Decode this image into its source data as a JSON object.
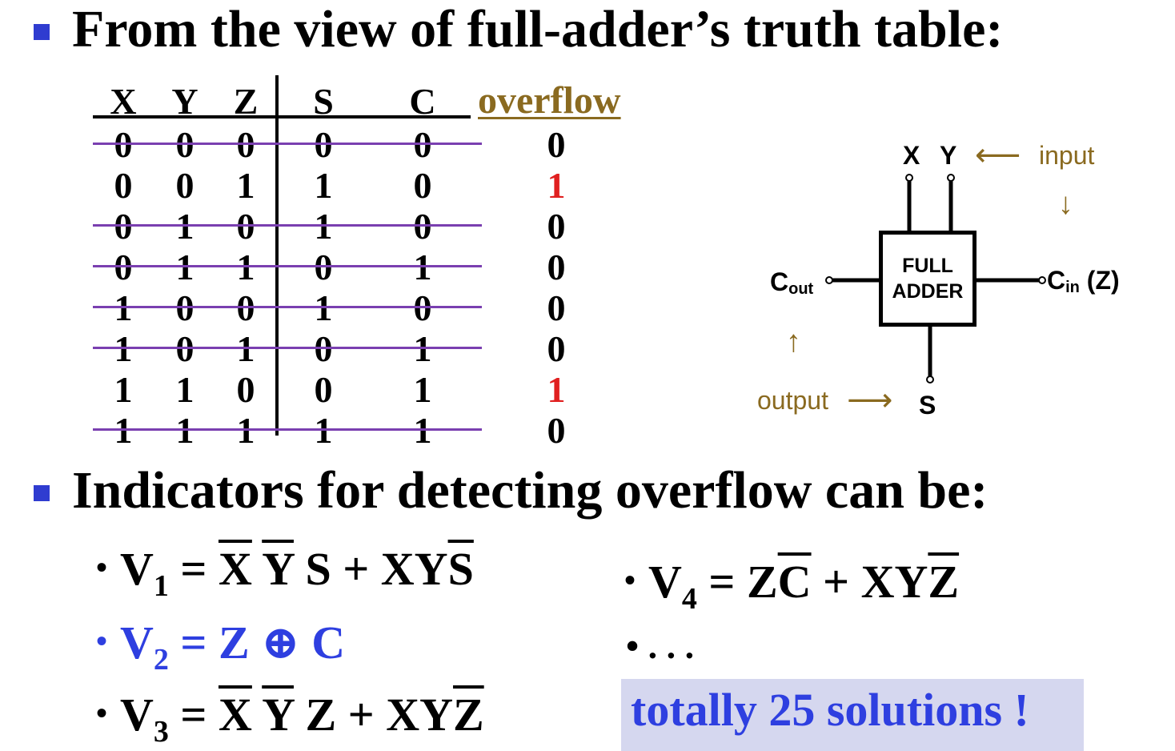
{
  "headings": {
    "first": "From the view of full-adder’s truth table:",
    "second": "Indicators for detecting overflow can be:"
  },
  "truth_table": {
    "headers": [
      "X",
      "Y",
      "Z",
      "S",
      "C"
    ],
    "overflow_header": "overflow",
    "rows": [
      {
        "values": [
          "0",
          "0",
          "0",
          "0",
          "0"
        ],
        "overflow": "0",
        "struck": true
      },
      {
        "values": [
          "0",
          "0",
          "1",
          "1",
          "0"
        ],
        "overflow": "1",
        "struck": false
      },
      {
        "values": [
          "0",
          "1",
          "0",
          "1",
          "0"
        ],
        "overflow": "0",
        "struck": true
      },
      {
        "values": [
          "0",
          "1",
          "1",
          "0",
          "1"
        ],
        "overflow": "0",
        "struck": true
      },
      {
        "values": [
          "1",
          "0",
          "0",
          "1",
          "0"
        ],
        "overflow": "0",
        "struck": true
      },
      {
        "values": [
          "1",
          "0",
          "1",
          "0",
          "1"
        ],
        "overflow": "0",
        "struck": true
      },
      {
        "values": [
          "1",
          "1",
          "0",
          "0",
          "1"
        ],
        "overflow": "1",
        "struck": false
      },
      {
        "values": [
          "1",
          "1",
          "1",
          "1",
          "1"
        ],
        "overflow": "0",
        "struck": true
      }
    ]
  },
  "diagram": {
    "box_line1": "FULL",
    "box_line2": "ADDER",
    "input_x": "X",
    "input_y": "Y",
    "input_label": "input",
    "input_arrow_left": "⟵",
    "input_arrow_down": "↓",
    "cout_main": "C",
    "cout_sub": "out",
    "cin_main": "C",
    "cin_sub": "in",
    "cin_extra": "(Z)",
    "output_arrow_up": "↑",
    "output_label": "output",
    "output_arrow_right": "⟶",
    "sum_label": "S"
  },
  "formulas": {
    "bullet": "•",
    "v1": {
      "v": "V",
      "sub": "1",
      "eq": "=",
      "a": "X",
      "b": "Y",
      "c": "S",
      "plus": "+",
      "d": "XY",
      "e": "S"
    },
    "v2": {
      "v": "V",
      "sub": "2",
      "text": "= Z ⊕ C"
    },
    "v3": {
      "v": "V",
      "sub": "3",
      "eq": "=",
      "a": "X",
      "b": "Y",
      "c": "Z",
      "plus": "+",
      "d": "XY",
      "e": "Z"
    },
    "v4": {
      "v": "V",
      "sub": "4",
      "eq": "=",
      "a": "Z",
      "b": "C",
      "plus": "+",
      "d": "XY",
      "e": "Z"
    },
    "ellipsis": "• . . ."
  },
  "note": {
    "text": "totally 25 solutions !"
  },
  "colors": {
    "bullet_square": "#2f3cd0",
    "overflow_header": "#8a6a20",
    "overflow_one": "#e02020",
    "strike_line": "#7a3fb0",
    "blue_text": "#2e3fe0",
    "note_bg": "#d5d7ef"
  }
}
